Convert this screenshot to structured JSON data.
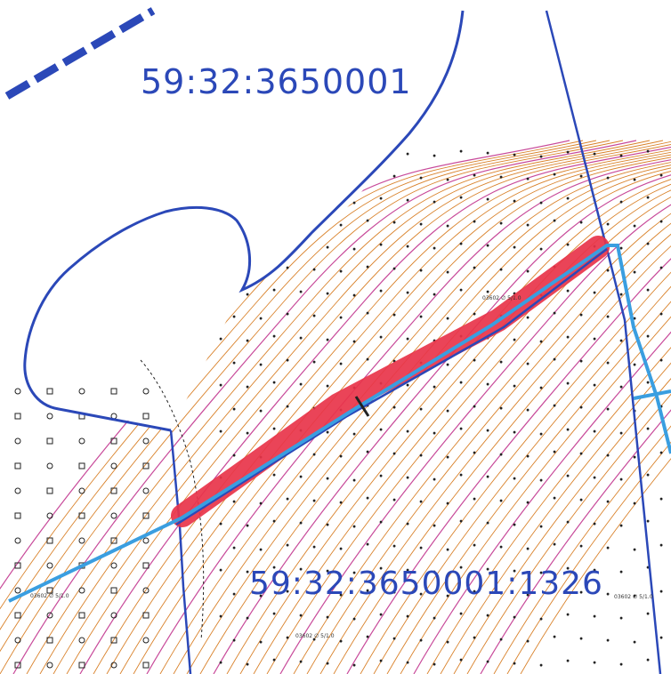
{
  "map": {
    "quarter_label": "59:32:3650001",
    "parcel_label": "59:32:3650001:1326",
    "colors": {
      "boundary": "#2b48b8",
      "road": "#3a9ee0",
      "highlight": "#e8344a",
      "contour_major": "#c84a9a",
      "contour_minor": "#d9822b"
    },
    "legend": "cadastral map fragment with contour lines"
  },
  "annotations": [
    {
      "text": "03602 ∅ 5/1.0"
    },
    {
      "text": "03602 ∅ 5/1.0"
    },
    {
      "text": "03602 ∅ 5/1.0"
    },
    {
      "text": "03602 ∅ 5/1.0"
    }
  ]
}
